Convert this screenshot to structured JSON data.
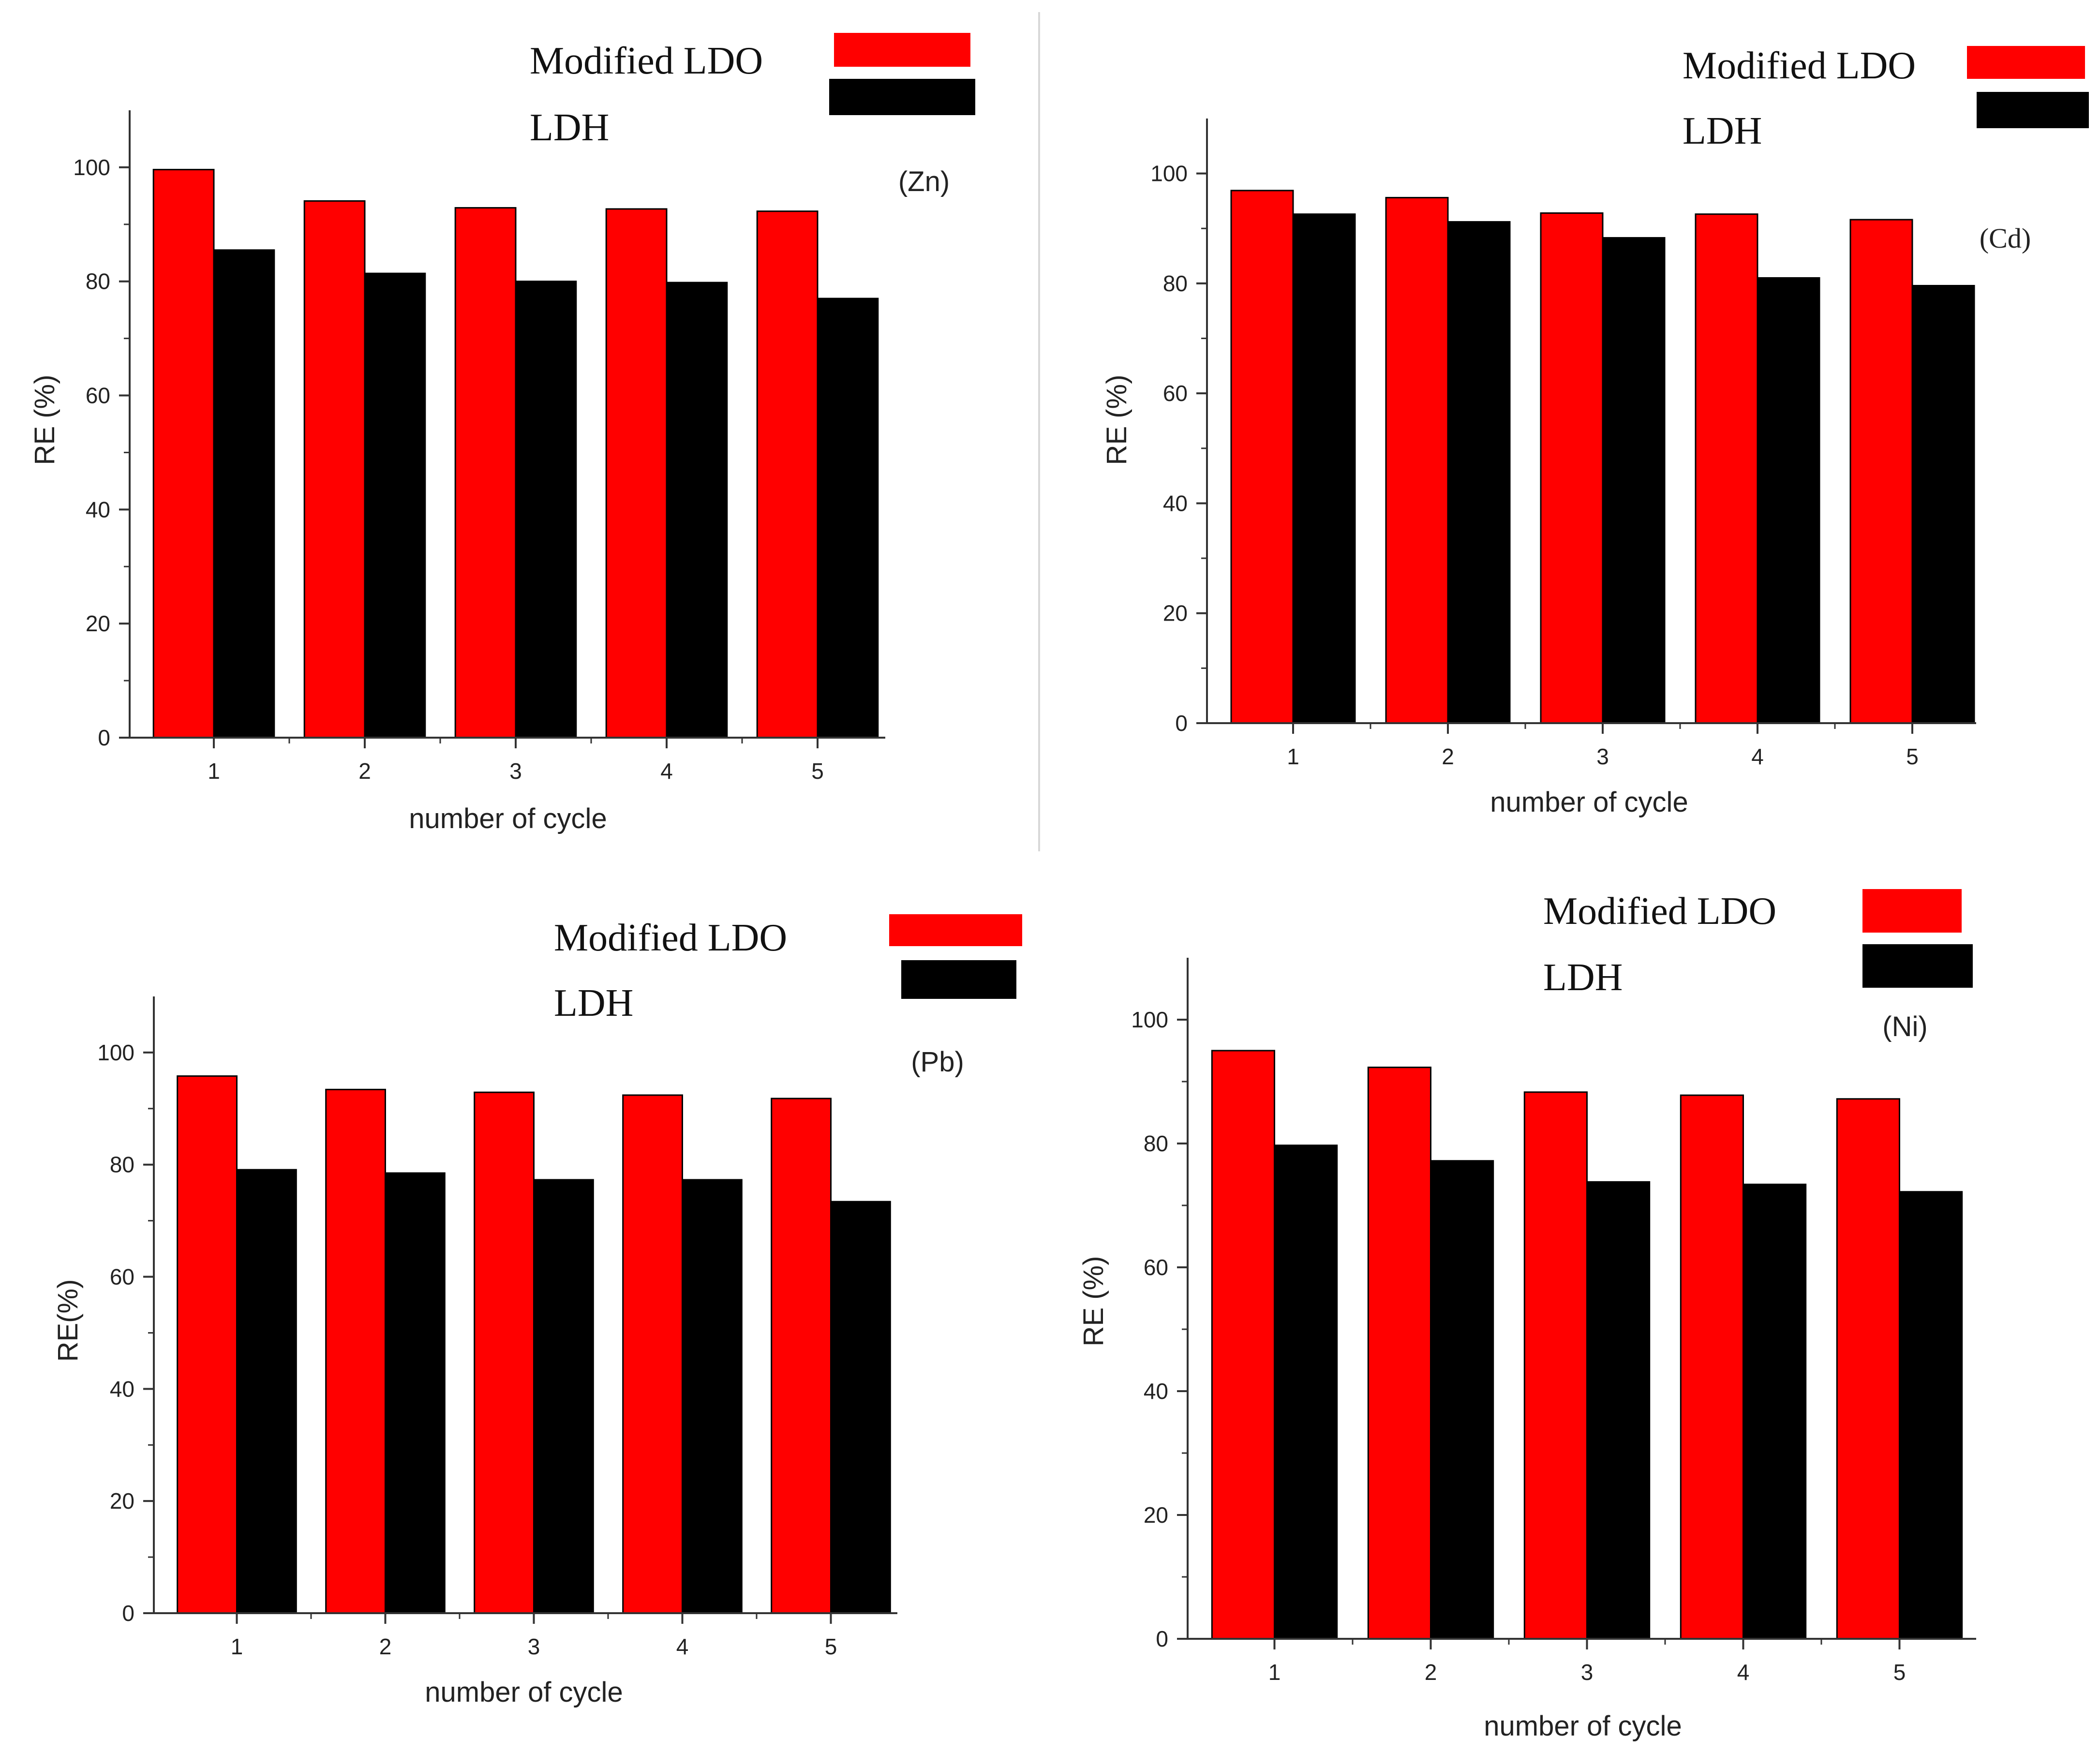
{
  "colors": {
    "modified": "#ff0000",
    "ldh": "#000000",
    "axis": "#333333"
  },
  "chart_data": [
    {
      "type": "bar",
      "tag": "(Zn)",
      "categories": [
        "1",
        "2",
        "3",
        "4",
        "5"
      ],
      "series": [
        {
          "name": "Modified LDO",
          "values": [
            99.6,
            94.1,
            92.9,
            92.7,
            92.3
          ]
        },
        {
          "name": "LDH",
          "values": [
            85.5,
            81.4,
            80.0,
            79.8,
            77.0
          ]
        }
      ],
      "legend_labels": [
        "Modified LDO",
        "LDH"
      ],
      "xlabel": "number of cycle",
      "ylabel": "RE (%)",
      "ylim": [
        0,
        110
      ],
      "yticks": [
        0,
        20,
        40,
        60,
        80,
        100
      ]
    },
    {
      "type": "bar",
      "tag": "(Cd)",
      "categories": [
        "1",
        "2",
        "3",
        "4",
        "5"
      ],
      "series": [
        {
          "name": "Modified LDO",
          "values": [
            96.9,
            95.6,
            92.8,
            92.6,
            91.6
          ]
        },
        {
          "name": "LDH",
          "values": [
            92.6,
            91.2,
            88.3,
            81.0,
            79.6
          ]
        }
      ],
      "legend_labels": [
        "Modified LDO",
        "LDH"
      ],
      "xlabel": "number of cycle",
      "ylabel": "RE (%)",
      "ylim": [
        0,
        110
      ],
      "yticks": [
        0,
        20,
        40,
        60,
        80,
        100
      ]
    },
    {
      "type": "bar",
      "tag": "(Pb)",
      "categories": [
        "1",
        "2",
        "3",
        "4",
        "5"
      ],
      "series": [
        {
          "name": "Modified LDO",
          "values": [
            95.8,
            93.4,
            92.9,
            92.4,
            91.8
          ]
        },
        {
          "name": "LDH",
          "values": [
            79.1,
            78.5,
            77.3,
            77.3,
            73.4
          ]
        }
      ],
      "legend_labels": [
        "Modified LDO",
        "LDH"
      ],
      "xlabel": "number of cycle",
      "ylabel": "RE(%)",
      "ylim": [
        0,
        110
      ],
      "yticks": [
        0,
        20,
        40,
        60,
        80,
        100
      ]
    },
    {
      "type": "bar",
      "tag": "(Ni)",
      "categories": [
        "1",
        "2",
        "3",
        "4",
        "5"
      ],
      "series": [
        {
          "name": "Modified LDO",
          "values": [
            95.0,
            92.3,
            88.3,
            87.8,
            87.2
          ]
        },
        {
          "name": "LDH",
          "values": [
            79.7,
            77.2,
            73.8,
            73.4,
            72.2
          ]
        }
      ],
      "legend_labels": [
        "Modified LDO",
        "LDH"
      ],
      "xlabel": "number of cycle",
      "ylabel": "RE (%)",
      "ylim": [
        0,
        110
      ],
      "yticks": [
        0,
        20,
        40,
        60,
        80,
        100
      ]
    }
  ]
}
